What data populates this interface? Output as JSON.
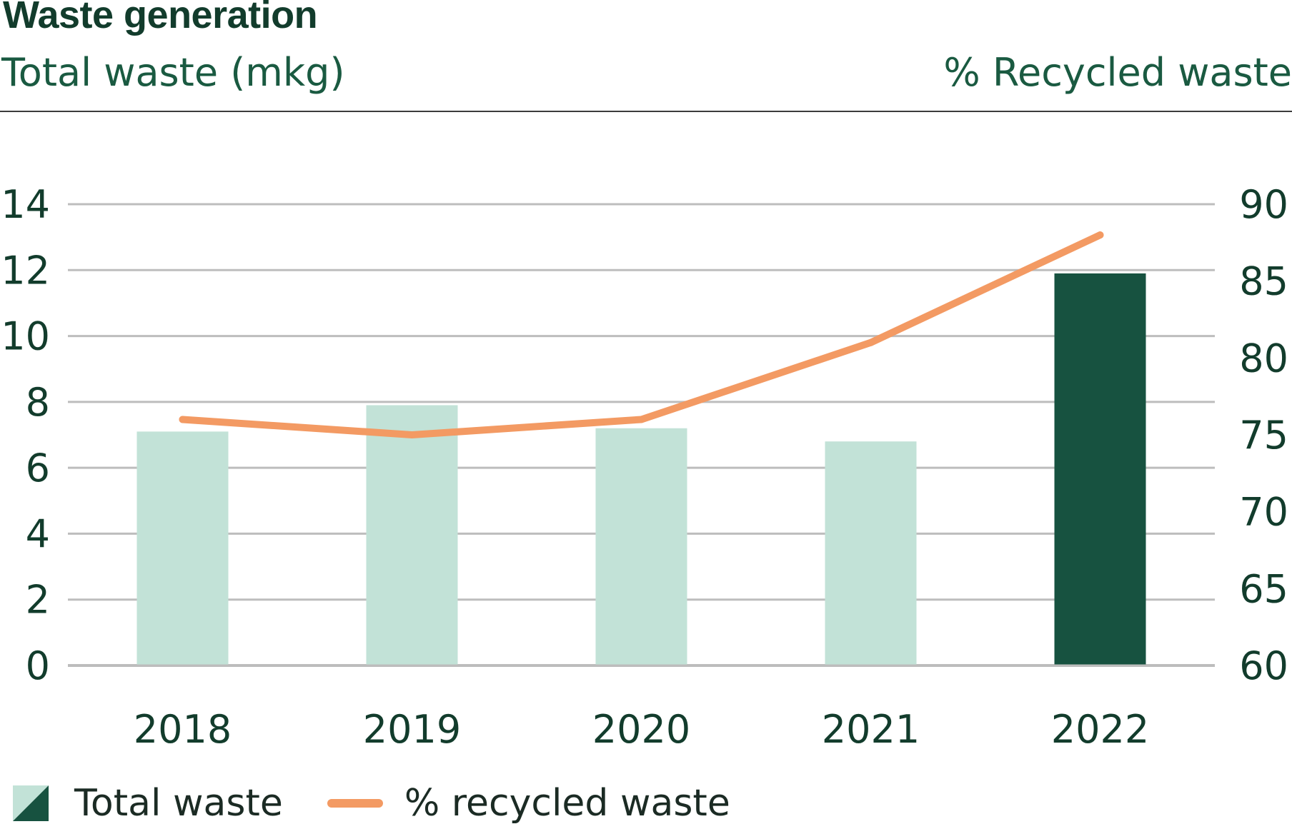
{
  "title": "Waste generation",
  "left_axis_title": "Total waste (mkg)",
  "right_axis_title": "% Recycled waste",
  "legend": {
    "bars_label": "Total waste",
    "line_label": "% recycled waste"
  },
  "colors": {
    "bar_light": "#c2e2d7",
    "bar_dark": "#175240",
    "line": "#f39a63",
    "grid": "#bdbdbd",
    "text_dark": "#123c2c"
  },
  "chart_data": {
    "type": "bar",
    "categories": [
      "2018",
      "2019",
      "2020",
      "2021",
      "2022"
    ],
    "series": [
      {
        "name": "Total waste",
        "type": "bar",
        "axis": "left",
        "values": [
          7.1,
          7.9,
          7.2,
          6.8,
          11.9
        ],
        "highlight_index": 4
      },
      {
        "name": "% recycled waste",
        "type": "line",
        "axis": "right",
        "values": [
          76,
          75,
          76,
          81,
          88
        ]
      }
    ],
    "y_left": {
      "label": "Total waste (mkg)",
      "lim": [
        0,
        14
      ],
      "ticks": [
        "0",
        "2",
        "4",
        "6",
        "8",
        "10",
        "12",
        "14"
      ]
    },
    "y_right": {
      "label": "% Recycled waste",
      "lim": [
        60,
        90
      ],
      "ticks": [
        "60",
        "65",
        "70",
        "75",
        "80",
        "85",
        "90"
      ]
    },
    "grid": true,
    "legend_position": "bottom-left"
  }
}
